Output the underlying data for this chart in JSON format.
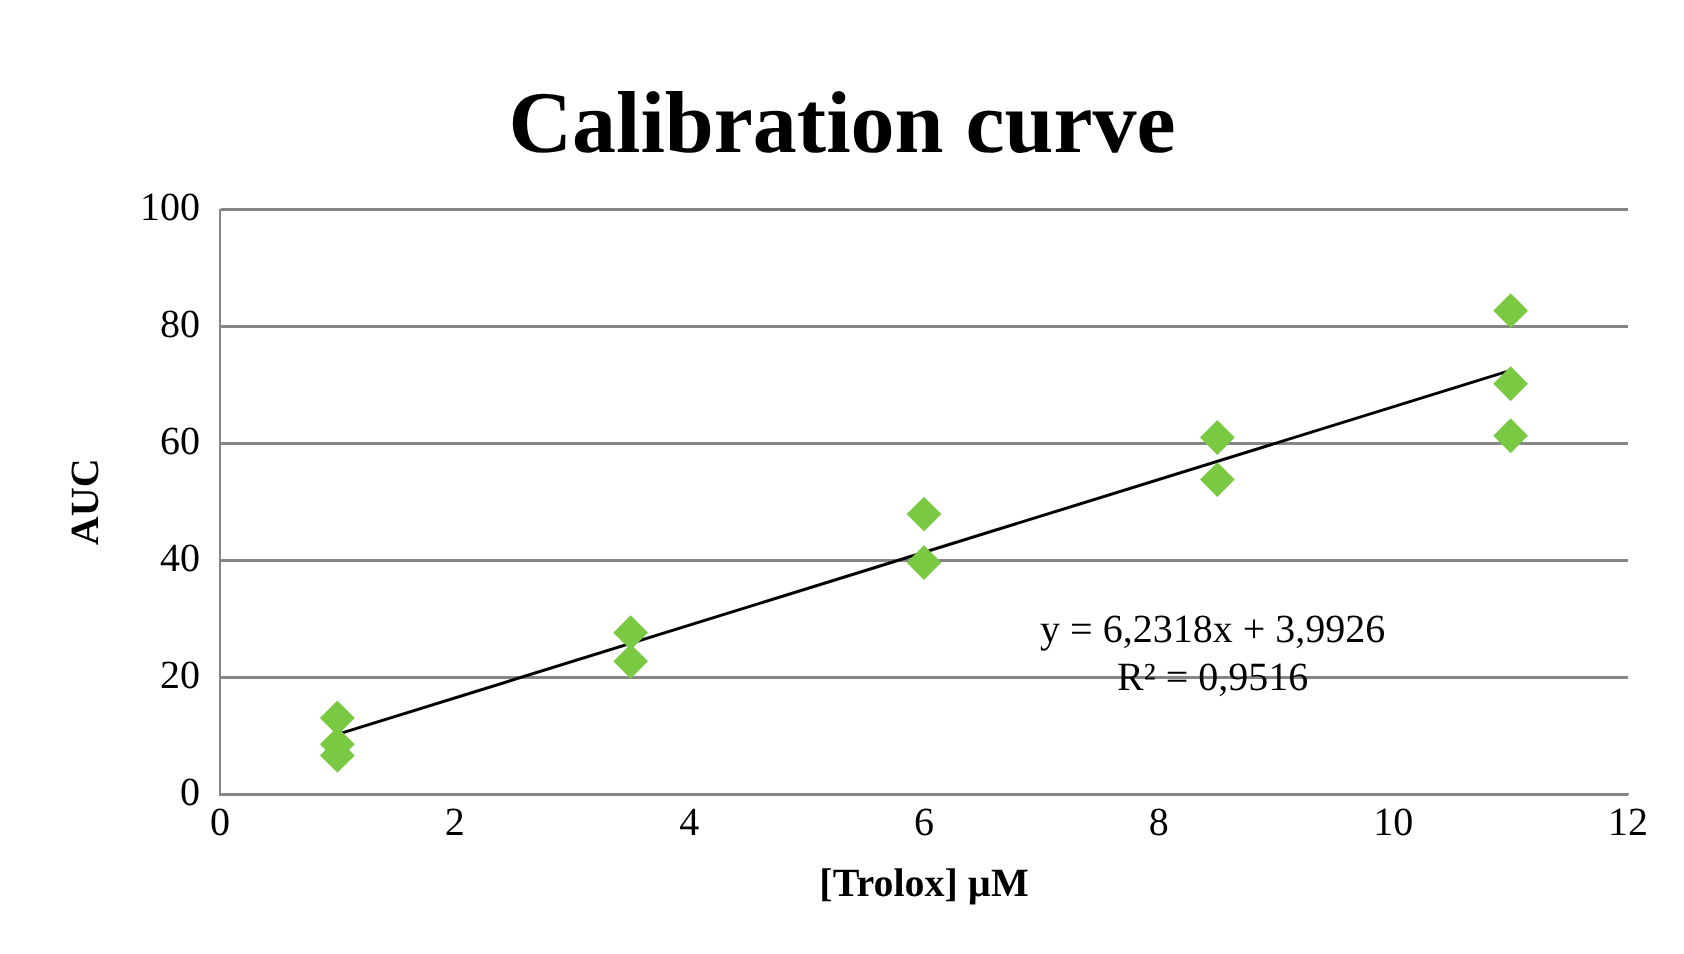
{
  "chart_data": {
    "type": "scatter",
    "title": "Calibration curve",
    "xlabel": "[Trolox] µM",
    "ylabel": "AUC",
    "xlim": [
      0,
      12
    ],
    "xticks": [
      0,
      2,
      4,
      6,
      8,
      10,
      12
    ],
    "ylim": [
      0,
      100
    ],
    "yticks": [
      0,
      20,
      40,
      60,
      80,
      100
    ],
    "grid": "y",
    "legend": false,
    "marker": "diamond",
    "series": [
      {
        "color": "#7ac943",
        "x": [
          1,
          1,
          1,
          3.5,
          3.5,
          6,
          6,
          8.5,
          8.5,
          11,
          11,
          11
        ],
        "values": [
          13,
          8.5,
          6.6,
          27.6,
          22.7,
          47.9,
          39.6,
          61,
          53.8,
          82.7,
          70.2,
          61.3
        ]
      },
      {
        "type": "line",
        "color": "#000000",
        "marker": "none",
        "x": [
          1,
          11
        ],
        "values": [
          10.2,
          72.5
        ]
      }
    ],
    "annotations": [
      "y = 6,2318x + 3,9926",
      "R² = 0,9516"
    ]
  }
}
